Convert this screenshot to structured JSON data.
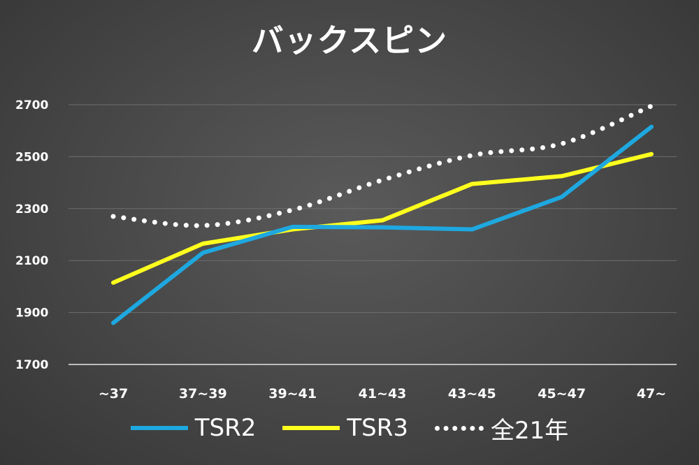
{
  "chart_data": {
    "type": "line",
    "title": "バックスピン",
    "xlabel": "",
    "ylabel": "",
    "categories": [
      "~37",
      "37~39",
      "39~41",
      "41~43",
      "43~45",
      "45~47",
      "47~"
    ],
    "yticks": [
      "1700",
      "1900",
      "2100",
      "2300",
      "2500",
      "2700"
    ],
    "ylim": [
      1700,
      2700
    ],
    "grid": true,
    "legend_position": "bottom",
    "series": [
      {
        "name": "TSR2",
        "color": "#1ea8e0",
        "style": "solid",
        "values": [
          1860,
          2130,
          2230,
          2228,
          2220,
          2345,
          2615
        ]
      },
      {
        "name": "TSR3",
        "color": "#ffff1e",
        "style": "solid",
        "values": [
          2015,
          2165,
          2220,
          2255,
          2395,
          2425,
          2510
        ]
      },
      {
        "name": "全21年",
        "color": "#ffffff",
        "style": "dotted",
        "values": [
          2270,
          2235,
          2295,
          2410,
          2505,
          2550,
          2695
        ]
      }
    ]
  }
}
